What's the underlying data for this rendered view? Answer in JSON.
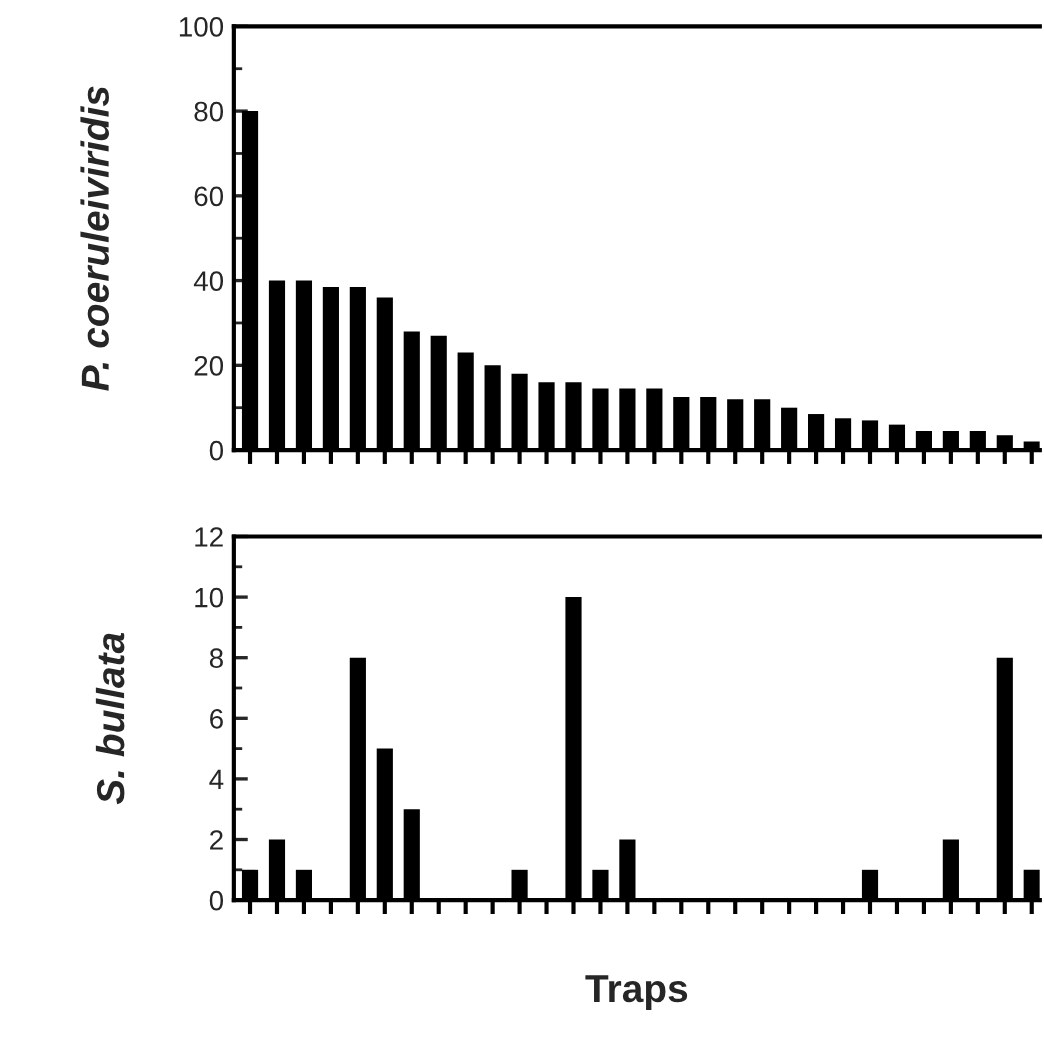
{
  "chart_data": [
    {
      "type": "bar",
      "ylabel": "P. coeruleiviridis",
      "categories": [
        null,
        null,
        null,
        null,
        null,
        null,
        null,
        null,
        null,
        null,
        null,
        null,
        null,
        null,
        null,
        null,
        null,
        null,
        null,
        null,
        null,
        null,
        null,
        null,
        null,
        null,
        null,
        null,
        null,
        null
      ],
      "values": [
        80,
        40,
        40,
        38.5,
        38.5,
        36,
        28,
        27,
        23,
        20,
        18,
        16,
        16,
        14.5,
        14.5,
        14.5,
        12.5,
        12.5,
        12,
        12,
        10,
        8.5,
        7.5,
        7,
        6,
        4.5,
        4.5,
        4.5,
        3.5,
        2
      ],
      "color": "#000000",
      "ylim": [
        0,
        100
      ],
      "yticks": [
        0,
        20,
        40,
        60,
        80,
        100
      ],
      "tick_labels": "y",
      "grid": false,
      "legend": false
    },
    {
      "type": "bar",
      "ylabel": "S. bullata",
      "xlabel": "Traps",
      "categories": [
        null,
        null,
        null,
        null,
        null,
        null,
        null,
        null,
        null,
        null,
        null,
        null,
        null,
        null,
        null,
        null,
        null,
        null,
        null,
        null,
        null,
        null,
        null,
        null,
        null,
        null,
        null,
        null,
        null,
        null
      ],
      "values": [
        1,
        2,
        1,
        0,
        8,
        5,
        3,
        0,
        0,
        0,
        1,
        0,
        10,
        1,
        2,
        0,
        0,
        0,
        0,
        0,
        0,
        0,
        0,
        1,
        0,
        0,
        2,
        0,
        8,
        1
      ],
      "color": "#000000",
      "ylim": [
        0,
        12
      ],
      "yticks": [
        0,
        2,
        4,
        6,
        8,
        10,
        12
      ],
      "tick_labels": "y",
      "grid": false,
      "legend": false
    }
  ]
}
